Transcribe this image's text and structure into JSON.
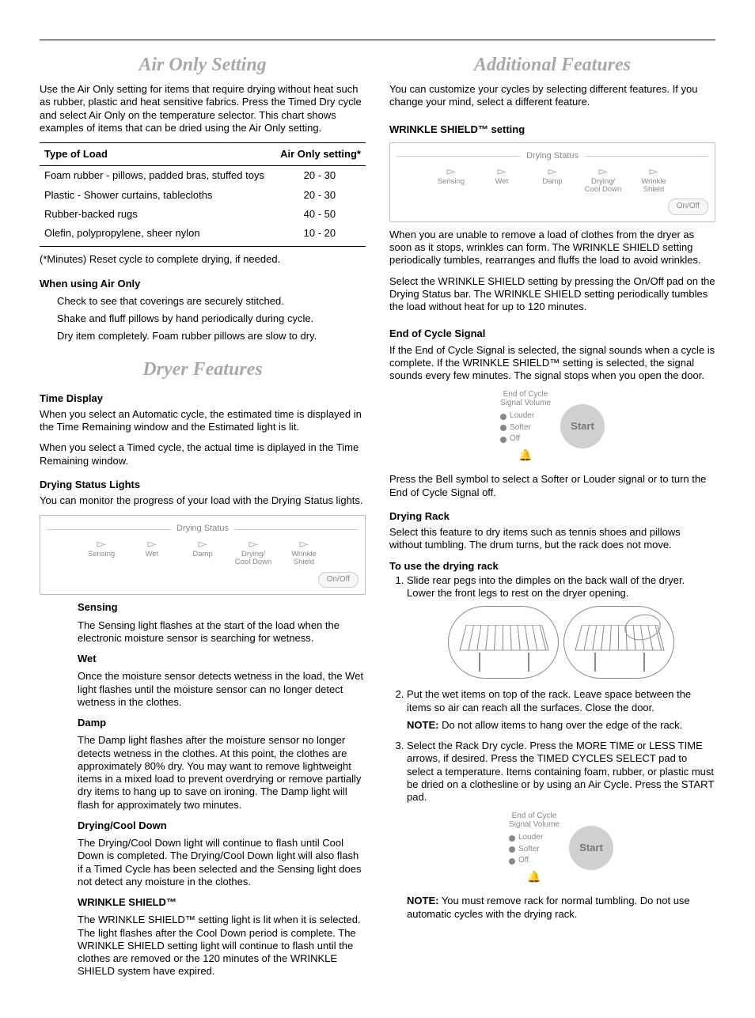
{
  "left": {
    "title_air": "Air Only Setting",
    "air_intro": "Use the Air Only setting for items that require drying without heat such as rubber, plastic and heat sensitive fabrics. Press the Timed Dry cycle and select Air Only on the temperature selector. This chart shows examples of items that can be dried using the Air Only setting.",
    "table": {
      "header_load": "Type of Load",
      "header_time": "Air Only setting*",
      "rows": [
        {
          "load": "Foam rubber - pillows, padded bras, stuffed toys",
          "time": "20 - 30"
        },
        {
          "load": "Plastic - Shower curtains, tablecloths",
          "time": "20 - 30"
        },
        {
          "load": "Rubber-backed rugs",
          "time": "40 - 50"
        },
        {
          "load": "Olefin, polypropylene, sheer nylon",
          "time": "10 - 20"
        }
      ]
    },
    "table_footnote": "(*Minutes) Reset cycle to complete drying, if needed.",
    "when_using_heading": "When using Air Only",
    "when_using_items": [
      "Check to see that coverings are securely stitched.",
      "Shake and fluff pillows by hand periodically during cycle.",
      "Dry item completely. Foam rubber pillows are slow to dry."
    ],
    "title_features": "Dryer Features",
    "time_display_h": "Time Display",
    "time_display_p1": "When you select an Automatic cycle, the estimated time is displayed in the Time Remaining window and the Estimated light is lit.",
    "time_display_p2": "When you select a Timed cycle, the actual time is diplayed in the Time Remaining window.",
    "drying_status_h": "Drying Status Lights",
    "drying_status_p": "You can monitor the progress of your load with the Drying Status lights.",
    "status_bar": {
      "title": "Drying Status",
      "items": [
        "Sensing",
        "Wet",
        "Damp",
        "Drying/\nCool Down",
        "Wrinkle\nShield"
      ],
      "onoff": "On/Off"
    },
    "sub": {
      "sensing_h": "Sensing",
      "sensing_p": "The Sensing light flashes at the start of the load when the electronic moisture sensor is searching for wetness.",
      "wet_h": "Wet",
      "wet_p": "Once the moisture sensor detects wetness in the load, the Wet light flashes until the moisture sensor can no longer detect wetness in the clothes.",
      "damp_h": "Damp",
      "damp_p": "The Damp light flashes after the moisture sensor no longer detects wetness in the clothes. At this point, the clothes are approximately 80% dry. You may want to remove lightweight items in a mixed load to prevent overdrying or remove partially dry items to hang up to save on ironing. The Damp light will flash for approximately two minutes.",
      "cool_h": "Drying/Cool Down",
      "cool_p": "The Drying/Cool Down light will continue to flash until Cool Down is completed. The Drying/Cool Down light will also flash if a Timed Cycle has been selected and the Sensing light does not detect any moisture in the clothes.",
      "ws_h": "WRINKLE SHIELD™",
      "ws_p": "The WRINKLE SHIELD™ setting light is lit when it is selected. The light flashes after the Cool Down period is complete. The WRINKLE SHIELD setting light will continue to flash until the clothes are removed or the 120 minutes of the WRINKLE SHIELD system have expired."
    }
  },
  "right": {
    "title_addl": "Additional Features",
    "addl_intro": "You can customize your cycles by selecting different features. If you change your mind, select a different feature.",
    "ws_setting_h": "WRINKLE SHIELD™ setting",
    "ws_p1": "When you are unable to remove a load of clothes from the dryer as soon as it stops, wrinkles can form. The WRINKLE SHIELD setting periodically tumbles, rearranges and fluffs the load to avoid wrinkles.",
    "ws_p2": "Select the WRINKLE SHIELD setting by pressing the On/Off pad on the Drying Status bar. The WRINKLE SHIELD setting periodically tumbles the load without heat for up to 120 minutes.",
    "eoc_h": "End of Cycle Signal",
    "eoc_p": "If the End of Cycle Signal is selected, the signal sounds when a cycle is complete. If the WRINKLE SHIELD™ setting is selected, the signal sounds every few minutes. The signal stops when you open the door.",
    "signal_fig": {
      "header": "End of Cycle\nSignal Volume",
      "opts": [
        "Louder",
        "Softer",
        "Off"
      ],
      "start": "Start"
    },
    "bell_p": "Press the Bell symbol to select a Softer or Louder signal or to turn the End of Cycle Signal off.",
    "rack_h": "Drying Rack",
    "rack_p": "Select this feature to dry items such as tennis shoes and pillows without tumbling. The drum turns, but the rack does not move.",
    "rack_use_h": "To use the drying rack",
    "rack_steps": [
      "Slide rear pegs into the dimples on the back wall of the dryer. Lower the front legs to rest on the dryer opening.",
      "Put the wet items on top of the rack. Leave space between the items so air can reach all the surfaces. Close the door.",
      "Select the Rack Dry cycle. Press the MORE TIME or LESS TIME arrows, if desired. Press the TIMED CYCLES SELECT pad to select a temperature. Items containing foam, rubber, or plastic must be dried on a clothesline or by using an Air Cycle. Press the START pad."
    ],
    "rack_note1_b": "NOTE:",
    "rack_note1": " Do not allow items to hang over the edge of the rack.",
    "rack_note2_b": "NOTE:",
    "rack_note2": " You must remove rack for normal tumbling. Do not use automatic cycles with the drying rack."
  }
}
